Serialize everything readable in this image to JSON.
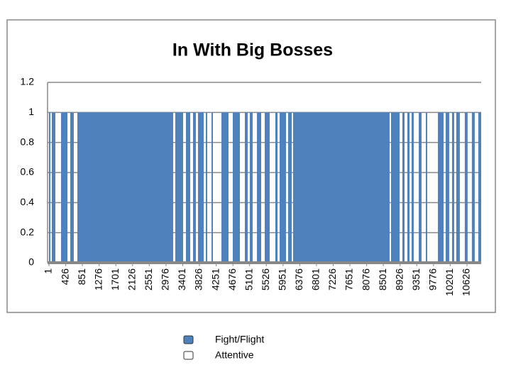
{
  "chart_data": {
    "type": "step-area",
    "title": "In With Big Bosses",
    "x": [
      1,
      37,
      73,
      163,
      308,
      470,
      542,
      632,
      723,
      3158,
      3212,
      3411,
      3483,
      3591,
      3663,
      3735,
      3789,
      3934,
      3988,
      4024,
      4132,
      4168,
      4385,
      4565,
      4673,
      4854,
      4980,
      5052,
      5106,
      5178,
      5287,
      5395,
      5485,
      5611,
      5756,
      5810,
      5864,
      6026,
      6080,
      6171,
      6207,
      8660,
      8696,
      8913,
      8985,
      9039,
      9111,
      9165,
      9219,
      9273,
      9400,
      9472,
      9580,
      9616,
      9887,
      10031,
      10085,
      10175,
      10247,
      10301,
      10355,
      10445,
      10571,
      10643,
      10751,
      10824,
      10914
    ],
    "values": [
      1,
      0,
      1,
      0,
      1,
      0,
      1,
      0,
      1,
      0,
      1,
      0,
      1,
      0,
      1,
      0,
      1,
      0,
      1,
      0,
      1,
      0,
      1,
      0,
      1,
      0,
      1,
      0,
      1,
      0,
      1,
      0,
      1,
      0,
      1,
      0,
      1,
      0,
      1,
      0,
      1,
      0,
      1,
      0,
      1,
      0,
      1,
      0,
      1,
      0,
      1,
      0,
      1,
      0,
      1,
      0,
      1,
      0,
      1,
      0,
      1,
      0,
      1,
      0,
      1,
      0,
      1
    ],
    "color": "#4f81bd",
    "legend": [
      {
        "name": "Fight/Flight",
        "color": "#4f81bd"
      },
      {
        "name": "Attentive",
        "color": "#ffffff"
      }
    ],
    "xlim": [
      1,
      10988
    ],
    "xticks": [
      1,
      426,
      851,
      1276,
      1701,
      2126,
      2551,
      2976,
      3401,
      3826,
      4251,
      4676,
      5101,
      5526,
      5951,
      6376,
      6801,
      7226,
      7651,
      8076,
      8501,
      8926,
      9351,
      9776,
      10201,
      10626
    ],
    "ylim": [
      0,
      1.2
    ],
    "yticks": [
      0,
      0.2,
      0.4,
      0.6,
      0.8,
      1,
      1.2
    ],
    "grid": true
  }
}
